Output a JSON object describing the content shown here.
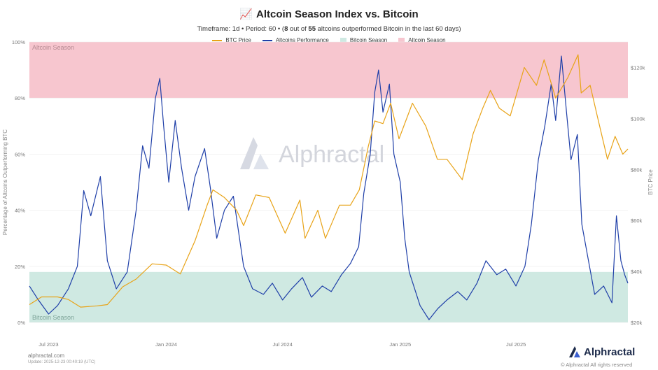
{
  "header": {
    "emoji": "📈",
    "title": "Altcoin Season Index vs. Bitcoin",
    "sub_timeframe": "Timeframe: 1d",
    "sub_sep": "•",
    "sub_period": "Period: 60",
    "sub_open": "(",
    "sub_n": "8",
    "sub_out_of": "out of",
    "sub_total": "55",
    "sub_rest": "altcoins outperformed Bitcoin in the last 60 days)"
  },
  "legend": [
    {
      "label": "BTC Price",
      "color": "#e8a317",
      "kind": "line"
    },
    {
      "label": "Altcoins Performance",
      "color": "#1f3fa8",
      "kind": "line"
    },
    {
      "label": "Bitcoin Season",
      "color": "#cfe9e2",
      "kind": "box"
    },
    {
      "label": "Altcoin Season",
      "color": "#f7c6cf",
      "kind": "box"
    }
  ],
  "footer": {
    "site": "alphractal.com",
    "update": "Update: 2025-12-23 00:40:19 (UTC)",
    "brand": "Alphractal",
    "copyright": "© Alphractal All rights reserved",
    "watermark": "Alphractal"
  },
  "chart_data": {
    "type": "line",
    "left_axis_label": "Percentage of Altcoins Outperforming BTC",
    "right_axis_label": "BTC Price",
    "left_ticks": [
      "0%",
      "20%",
      "40%",
      "60%",
      "80%",
      "100%"
    ],
    "right_ticks": [
      "$20k",
      "$40k",
      "$60k",
      "$80k",
      "$100k",
      "$120k"
    ],
    "x_ticks": [
      "Jul 2023",
      "Jan 2024",
      "Jul 2024",
      "Jan 2025",
      "Jul 2025"
    ],
    "ylim_left": [
      0,
      100
    ],
    "ylim_right": [
      20000,
      130000
    ],
    "x_range": [
      "2023-06-01",
      "2025-12-23"
    ],
    "bands": [
      {
        "label": "Altcoin Season",
        "from": 80,
        "to": 100,
        "color": "#f7c6cf"
      },
      {
        "label": "Bitcoin Season",
        "from": 0,
        "to": 18,
        "color": "#cfe9e2"
      }
    ],
    "series": [
      {
        "name": "Altcoins Performance",
        "axis": "left",
        "color": "#1f3fa8",
        "points": [
          [
            "2023-06-01",
            13
          ],
          [
            "2023-06-15",
            8
          ],
          [
            "2023-07-01",
            3
          ],
          [
            "2023-07-15",
            6
          ],
          [
            "2023-08-01",
            12
          ],
          [
            "2023-08-15",
            20
          ],
          [
            "2023-08-25",
            47
          ],
          [
            "2023-09-05",
            38
          ],
          [
            "2023-09-20",
            52
          ],
          [
            "2023-10-01",
            22
          ],
          [
            "2023-10-15",
            12
          ],
          [
            "2023-11-01",
            18
          ],
          [
            "2023-11-15",
            40
          ],
          [
            "2023-11-25",
            63
          ],
          [
            "2023-12-05",
            55
          ],
          [
            "2023-12-15",
            80
          ],
          [
            "2023-12-22",
            87
          ],
          [
            "2023-12-28",
            70
          ],
          [
            "2024-01-05",
            50
          ],
          [
            "2024-01-15",
            72
          ],
          [
            "2024-01-25",
            55
          ],
          [
            "2024-02-05",
            40
          ],
          [
            "2024-02-15",
            52
          ],
          [
            "2024-03-01",
            62
          ],
          [
            "2024-03-10",
            48
          ],
          [
            "2024-03-20",
            30
          ],
          [
            "2024-04-01",
            40
          ],
          [
            "2024-04-15",
            45
          ],
          [
            "2024-05-01",
            20
          ],
          [
            "2024-05-15",
            12
          ],
          [
            "2024-06-01",
            10
          ],
          [
            "2024-06-15",
            14
          ],
          [
            "2024-07-01",
            8
          ],
          [
            "2024-07-15",
            12
          ],
          [
            "2024-08-01",
            16
          ],
          [
            "2024-08-15",
            9
          ],
          [
            "2024-09-01",
            13
          ],
          [
            "2024-09-15",
            11
          ],
          [
            "2024-10-01",
            17
          ],
          [
            "2024-10-15",
            21
          ],
          [
            "2024-10-28",
            27
          ],
          [
            "2024-11-05",
            46
          ],
          [
            "2024-11-15",
            60
          ],
          [
            "2024-11-22",
            82
          ],
          [
            "2024-11-28",
            90
          ],
          [
            "2024-12-05",
            75
          ],
          [
            "2024-12-15",
            85
          ],
          [
            "2024-12-22",
            60
          ],
          [
            "2025-01-01",
            50
          ],
          [
            "2025-01-08",
            30
          ],
          [
            "2025-01-15",
            18
          ],
          [
            "2025-02-01",
            6
          ],
          [
            "2025-02-15",
            1
          ],
          [
            "2025-03-01",
            5
          ],
          [
            "2025-03-15",
            8
          ],
          [
            "2025-04-01",
            11
          ],
          [
            "2025-04-15",
            8
          ],
          [
            "2025-05-01",
            14
          ],
          [
            "2025-05-15",
            22
          ],
          [
            "2025-06-01",
            17
          ],
          [
            "2025-06-15",
            19
          ],
          [
            "2025-07-01",
            13
          ],
          [
            "2025-07-15",
            20
          ],
          [
            "2025-07-25",
            35
          ],
          [
            "2025-08-05",
            58
          ],
          [
            "2025-08-15",
            70
          ],
          [
            "2025-08-25",
            85
          ],
          [
            "2025-09-01",
            72
          ],
          [
            "2025-09-10",
            95
          ],
          [
            "2025-09-18",
            75
          ],
          [
            "2025-09-25",
            58
          ],
          [
            "2025-10-05",
            67
          ],
          [
            "2025-10-12",
            35
          ],
          [
            "2025-10-20",
            25
          ],
          [
            "2025-11-01",
            10
          ],
          [
            "2025-11-15",
            13
          ],
          [
            "2025-11-28",
            7
          ],
          [
            "2025-12-05",
            38
          ],
          [
            "2025-12-12",
            22
          ],
          [
            "2025-12-18",
            17
          ],
          [
            "2025-12-23",
            14
          ]
        ]
      },
      {
        "name": "BTC Price",
        "axis": "right",
        "color": "#e8a317",
        "points": [
          [
            "2023-06-01",
            27000
          ],
          [
            "2023-06-20",
            30000
          ],
          [
            "2023-07-15",
            30000
          ],
          [
            "2023-08-01",
            29000
          ],
          [
            "2023-08-20",
            26000
          ],
          [
            "2023-09-15",
            26500
          ],
          [
            "2023-10-01",
            27000
          ],
          [
            "2023-10-25",
            34000
          ],
          [
            "2023-11-15",
            37000
          ],
          [
            "2023-12-10",
            43000
          ],
          [
            "2024-01-01",
            42500
          ],
          [
            "2024-01-23",
            39000
          ],
          [
            "2024-02-15",
            52000
          ],
          [
            "2024-03-05",
            66000
          ],
          [
            "2024-03-14",
            72000
          ],
          [
            "2024-04-01",
            69000
          ],
          [
            "2024-04-20",
            64000
          ],
          [
            "2024-05-01",
            58000
          ],
          [
            "2024-05-20",
            70000
          ],
          [
            "2024-06-10",
            69000
          ],
          [
            "2024-07-05",
            55000
          ],
          [
            "2024-07-28",
            68000
          ],
          [
            "2024-08-05",
            53000
          ],
          [
            "2024-08-25",
            64000
          ],
          [
            "2024-09-06",
            53000
          ],
          [
            "2024-09-28",
            66000
          ],
          [
            "2024-10-15",
            66000
          ],
          [
            "2024-10-29",
            72000
          ],
          [
            "2024-11-12",
            89000
          ],
          [
            "2024-11-22",
            99000
          ],
          [
            "2024-12-05",
            98000
          ],
          [
            "2024-12-17",
            106000
          ],
          [
            "2024-12-30",
            92000
          ],
          [
            "2025-01-20",
            106000
          ],
          [
            "2025-02-10",
            97000
          ],
          [
            "2025-02-28",
            84000
          ],
          [
            "2025-03-15",
            84000
          ],
          [
            "2025-04-08",
            76000
          ],
          [
            "2025-04-25",
            94000
          ],
          [
            "2025-05-10",
            104000
          ],
          [
            "2025-05-22",
            111000
          ],
          [
            "2025-06-05",
            104000
          ],
          [
            "2025-06-22",
            101000
          ],
          [
            "2025-07-14",
            120000
          ],
          [
            "2025-08-02",
            113000
          ],
          [
            "2025-08-14",
            123000
          ],
          [
            "2025-09-01",
            108000
          ],
          [
            "2025-09-20",
            116000
          ],
          [
            "2025-10-06",
            125000
          ],
          [
            "2025-10-11",
            110000
          ],
          [
            "2025-10-25",
            113000
          ],
          [
            "2025-11-05",
            101000
          ],
          [
            "2025-11-21",
            84000
          ],
          [
            "2025-12-03",
            93000
          ],
          [
            "2025-12-15",
            86000
          ],
          [
            "2025-12-23",
            88000
          ]
        ]
      }
    ]
  }
}
